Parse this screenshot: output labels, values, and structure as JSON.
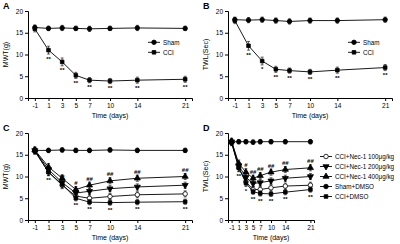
{
  "chart_data": [
    {
      "type": "line",
      "title": "A",
      "x_label": "Time (days)",
      "y_label": "MWT(g)",
      "x": [
        -1,
        1,
        3,
        5,
        7,
        10,
        14,
        21
      ],
      "xlim": [
        -2,
        22
      ],
      "xticks": [
        -1,
        1,
        3,
        5,
        7,
        10,
        14,
        21
      ],
      "ylim": [
        0,
        20
      ],
      "yticks": [
        0,
        5,
        10,
        15,
        20
      ],
      "legend": "center right",
      "series": [
        {
          "name": "Sham",
          "color": "#000000",
          "marker": "circle",
          "values": [
            16.2,
            16.0,
            16.1,
            16.0,
            15.9,
            16.0,
            16.1,
            16.0
          ],
          "errors": [
            0.6,
            0.5,
            0.6,
            0.5,
            0.6,
            0.5,
            0.6,
            0.5
          ]
        },
        {
          "name": "CCI",
          "color": "#000000",
          "marker": "square",
          "values": [
            15.9,
            11.0,
            8.3,
            5.2,
            4.1,
            3.9,
            4.1,
            4.3
          ],
          "errors": [
            0.7,
            0.9,
            0.9,
            0.7,
            0.6,
            0.6,
            0.7,
            0.7
          ],
          "annotations": [
            null,
            "**",
            "**",
            "**",
            "**",
            "**",
            "**",
            "**"
          ]
        }
      ]
    },
    {
      "type": "line",
      "title": "B",
      "x_label": "Time (days)",
      "y_label": "TWL(Sec)",
      "x": [
        -1,
        1,
        3,
        5,
        7,
        10,
        14,
        21
      ],
      "xlim": [
        -2,
        22
      ],
      "xticks": [
        -1,
        1,
        3,
        5,
        7,
        10,
        14,
        21
      ],
      "ylim": [
        0,
        20
      ],
      "yticks": [
        0,
        5,
        10,
        15,
        20
      ],
      "legend": "center right",
      "series": [
        {
          "name": "Sham",
          "color": "#000000",
          "marker": "circle",
          "values": [
            18.0,
            17.9,
            18.0,
            17.8,
            17.6,
            17.8,
            17.8,
            18.0
          ],
          "errors": [
            0.6,
            0.6,
            0.6,
            0.6,
            0.6,
            0.6,
            0.6,
            0.6
          ]
        },
        {
          "name": "CCI",
          "color": "#000000",
          "marker": "square",
          "values": [
            17.8,
            12.0,
            8.5,
            6.6,
            6.3,
            6.0,
            6.4,
            7.0
          ],
          "errors": [
            0.7,
            1.0,
            0.9,
            0.7,
            0.6,
            0.6,
            0.7,
            0.7
          ],
          "annotations": [
            null,
            "**",
            "*",
            "**",
            "**",
            "**",
            "**",
            "**"
          ]
        }
      ]
    },
    {
      "type": "line",
      "title": "C",
      "x_label": "Time (days)",
      "y_label": "MWT(g)",
      "x": [
        -1,
        1,
        3,
        5,
        7,
        10,
        14,
        21
      ],
      "xlim": [
        -2,
        22
      ],
      "xticks": [
        -1,
        1,
        3,
        5,
        7,
        10,
        14,
        21
      ],
      "ylim": [
        0,
        20
      ],
      "yticks": [
        0,
        5,
        10,
        15,
        20
      ],
      "series": [
        {
          "name": "CCI+Nec-1 100μg/kg",
          "color": "#000000",
          "marker": "circle-open",
          "values": [
            15.8,
            11.0,
            8.0,
            5.5,
            5.0,
            5.4,
            5.8,
            6.0
          ],
          "errors": [
            0.7,
            0.8,
            0.8,
            0.7,
            0.7,
            0.7,
            0.7,
            0.7
          ]
        },
        {
          "name": "CCI+Nec-1 200μg/kg",
          "color": "#000000",
          "marker": "triangle-down",
          "values": [
            16.0,
            11.6,
            8.6,
            6.2,
            6.6,
            7.2,
            7.6,
            8.0
          ],
          "errors": [
            0.7,
            0.8,
            0.8,
            0.7,
            0.7,
            0.7,
            0.7,
            0.7
          ]
        },
        {
          "name": "CCI+Nec-1 400μg/kg",
          "color": "#000000",
          "marker": "triangle",
          "values": [
            16.1,
            12.2,
            9.6,
            7.0,
            8.0,
            9.0,
            9.6,
            10.0
          ],
          "errors": [
            0.7,
            0.8,
            0.8,
            0.7,
            0.7,
            0.7,
            0.7,
            0.7
          ],
          "annotations": [
            null,
            null,
            null,
            "#",
            "##",
            "##",
            "##",
            "##"
          ]
        },
        {
          "name": "Sham+DMSO",
          "color": "#000000",
          "marker": "circle",
          "values": [
            16.0,
            16.0,
            16.1,
            16.0,
            16.0,
            16.1,
            16.0,
            16.0
          ],
          "errors": [
            0.5,
            0.5,
            0.5,
            0.5,
            0.5,
            0.5,
            0.5,
            0.5
          ]
        },
        {
          "name": "CCI+DMSO",
          "color": "#000000",
          "marker": "square",
          "values": [
            15.9,
            11.0,
            8.2,
            5.0,
            4.1,
            4.0,
            4.1,
            4.2
          ],
          "errors": [
            0.7,
            0.8,
            0.8,
            0.6,
            0.6,
            0.6,
            0.6,
            0.6
          ],
          "annotations": [
            null,
            "**",
            "**",
            "**",
            "**",
            "**",
            "**",
            "**"
          ]
        }
      ]
    },
    {
      "type": "line",
      "title": "D",
      "x_label": "Time (days)",
      "y_label": "TWL(Sec)",
      "x": [
        -1,
        1,
        3,
        5,
        7,
        10,
        14,
        21
      ],
      "xlim": [
        -2,
        22
      ],
      "xticks": [
        -1,
        1,
        3,
        5,
        7,
        10,
        14,
        21
      ],
      "ylim": [
        0,
        20
      ],
      "yticks": [
        0,
        5,
        10,
        15,
        20
      ],
      "legend": "right",
      "series": [
        {
          "name": "CCI+Nec-1 100μg/kg",
          "color": "#000000",
          "marker": "circle-open",
          "values": [
            17.8,
            12.0,
            8.8,
            7.0,
            7.0,
            7.4,
            7.8,
            8.0
          ],
          "errors": [
            0.7,
            0.8,
            0.8,
            0.7,
            0.7,
            0.7,
            0.7,
            0.7
          ]
        },
        {
          "name": "CCI+Nec-1 200μg/kg",
          "color": "#000000",
          "marker": "triangle-down",
          "values": [
            18.0,
            12.5,
            9.8,
            8.4,
            8.6,
            9.0,
            9.6,
            10.0
          ],
          "errors": [
            0.7,
            0.8,
            0.8,
            0.7,
            0.7,
            0.7,
            0.7,
            0.7
          ]
        },
        {
          "name": "CCI+Nec-1 400μg/kg",
          "color": "#000000",
          "marker": "triangle",
          "values": [
            18.1,
            13.0,
            11.0,
            9.6,
            10.2,
            11.0,
            11.6,
            12.0
          ],
          "errors": [
            0.7,
            0.8,
            0.8,
            0.7,
            0.7,
            0.7,
            0.7,
            0.7
          ],
          "annotations": [
            null,
            null,
            "#",
            "##",
            "##",
            "##",
            "##",
            "##"
          ]
        },
        {
          "name": "Sham+DMSO",
          "color": "#000000",
          "marker": "circle",
          "values": [
            18.0,
            18.0,
            18.0,
            17.9,
            18.0,
            18.0,
            18.0,
            18.0
          ],
          "errors": [
            0.5,
            0.5,
            0.5,
            0.5,
            0.5,
            0.5,
            0.5,
            0.5
          ]
        },
        {
          "name": "CCI+DMSO",
          "color": "#000000",
          "marker": "square",
          "values": [
            17.8,
            12.0,
            8.5,
            6.5,
            6.1,
            6.0,
            6.4,
            7.0
          ],
          "errors": [
            0.7,
            0.9,
            0.8,
            0.6,
            0.6,
            0.6,
            0.6,
            0.6
          ],
          "annotations": [
            null,
            "**",
            "*",
            "**",
            "**",
            "**",
            "**",
            "**"
          ]
        }
      ]
    }
  ]
}
